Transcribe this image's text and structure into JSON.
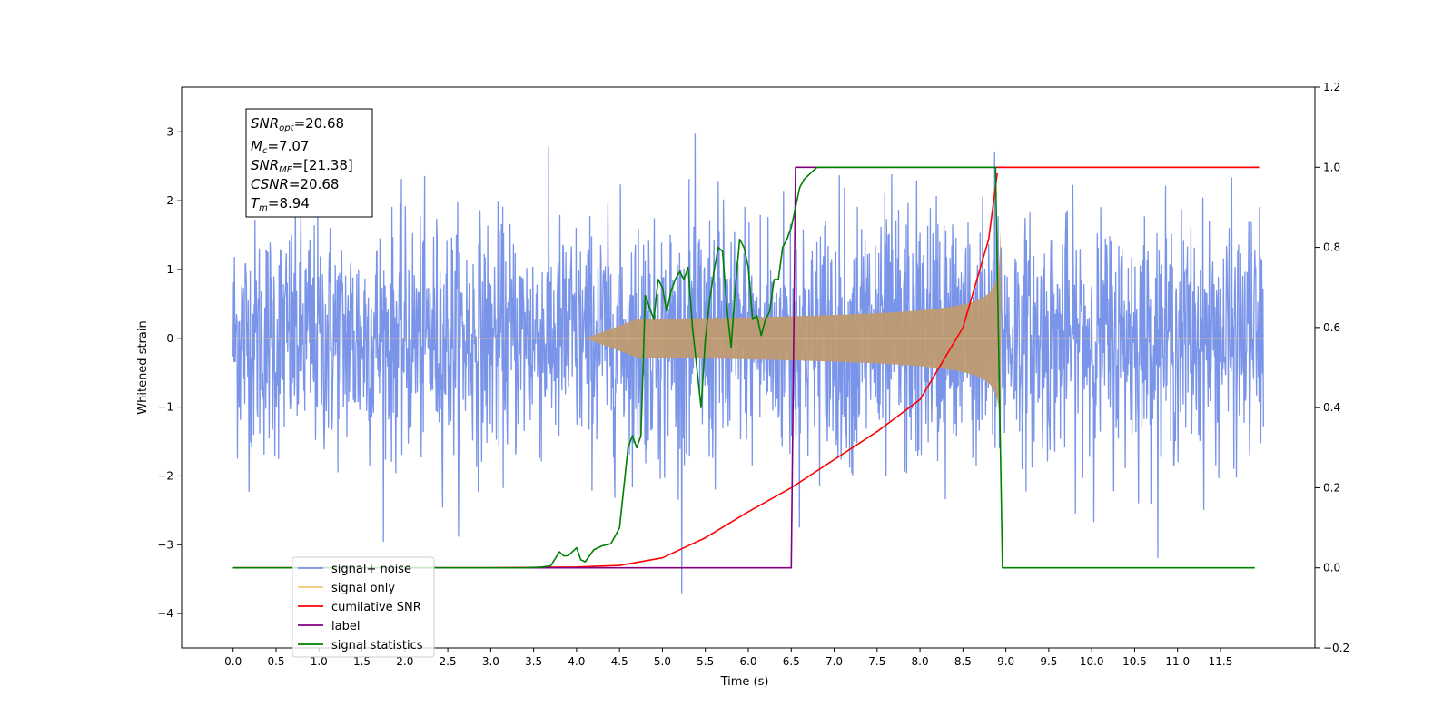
{
  "chart_data": {
    "type": "line",
    "xlabel": "Time (s)",
    "ylabel": "Whitened strain",
    "x_ticks": [
      "0.0",
      "0.5",
      "1.0",
      "1.5",
      "2.0",
      "2.5",
      "3.0",
      "3.5",
      "4.0",
      "4.5",
      "5.0",
      "5.5",
      "6.0",
      "6.5",
      "7.0",
      "7.5",
      "8.0",
      "8.5",
      "9.0",
      "9.5",
      "10.0",
      "10.5",
      "11.0",
      "11.5"
    ],
    "x_tick_values": [
      0,
      0.5,
      1,
      1.5,
      2,
      2.5,
      3,
      3.5,
      4,
      4.5,
      5,
      5.5,
      6,
      6.5,
      7,
      7.5,
      8,
      8.5,
      9,
      9.5,
      10,
      10.5,
      11,
      11.5
    ],
    "xlim": [
      -0.6,
      12.6
    ],
    "y_left_ticks": [
      "−4",
      "−3",
      "−2",
      "−1",
      "0",
      "1",
      "2",
      "3"
    ],
    "y_left_tick_values": [
      -4,
      -3,
      -2,
      -1,
      0,
      1,
      2,
      3
    ],
    "ylim_left": [
      -4.5,
      3.65
    ],
    "y_right_ticks": [
      "−0.2",
      "0.0",
      "0.2",
      "0.4",
      "0.6",
      "0.8",
      "1.0",
      "1.2"
    ],
    "y_right_tick_values": [
      -0.2,
      0,
      0.2,
      0.4,
      0.6,
      0.8,
      1.0,
      1.2
    ],
    "ylim_right": [
      -0.2,
      1.2
    ],
    "grid": false,
    "legend_position": "lower-left",
    "annotation": {
      "lines": [
        {
          "base": "SNR",
          "sub": "opt",
          "value": "=20.68"
        },
        {
          "base": "M",
          "sub": "c",
          "value": "=7.07"
        },
        {
          "base": "SNR",
          "sub": "MF",
          "value": "=[21.38]"
        },
        {
          "base": "CSNR",
          "sub": "",
          "value": "=20.68"
        },
        {
          "base": "T",
          "sub": "m",
          "value": "=8.94"
        }
      ]
    },
    "series": [
      {
        "name": "signal+ noise",
        "color": "#7994e8",
        "axis": "left",
        "description_x_range": [
          0,
          12
        ]
      },
      {
        "name": "signal only",
        "color": "#f5c77e",
        "axis": "left",
        "chirp_start": 4.7,
        "chirp_end": 8.94
      },
      {
        "name": "cumilative SNR",
        "color": "#ff0000",
        "axis": "right",
        "x": [
          0,
          3,
          4,
          4.5,
          5,
          5.5,
          6,
          6.5,
          7,
          7.5,
          8,
          8.5,
          8.8,
          8.9
        ],
        "y": [
          0,
          0,
          0.002,
          0.006,
          0.025,
          0.075,
          0.14,
          0.2,
          0.27,
          0.34,
          0.42,
          0.6,
          0.82,
          0.985
        ]
      },
      {
        "name": "label",
        "color": "#800080",
        "axis": "right",
        "x": [
          0,
          6.5,
          6.55,
          8.9,
          8.95,
          11.95
        ],
        "y": [
          0,
          0,
          1,
          1,
          1,
          1
        ]
      },
      {
        "name": "signal statistics",
        "color": "#008000",
        "axis": "right",
        "x": [
          0,
          3.4,
          3.5,
          3.6,
          3.7,
          3.8,
          3.85,
          3.9,
          3.95,
          4.0,
          4.05,
          4.1,
          4.15,
          4.2,
          4.3,
          4.4,
          4.5,
          4.55,
          4.6,
          4.65,
          4.7,
          4.75,
          4.8,
          4.85,
          4.9,
          4.95,
          5.0,
          5.05,
          5.1,
          5.15,
          5.2,
          5.25,
          5.3,
          5.35,
          5.4,
          5.45,
          5.5,
          5.55,
          5.6,
          5.65,
          5.7,
          5.75,
          5.8,
          5.85,
          5.9,
          5.95,
          6.0,
          6.05,
          6.1,
          6.15,
          6.2,
          6.25,
          6.3,
          6.35,
          6.4,
          6.45,
          6.5,
          6.55,
          6.6,
          6.65,
          6.7,
          6.75,
          6.8,
          6.85,
          6.9,
          6.95,
          7.0,
          7.05,
          7.1,
          7.15,
          7.2,
          7.25,
          7.3,
          7.5,
          8.0,
          8.5,
          8.88,
          8.92,
          8.96,
          9.0,
          11.9
        ],
        "y": [
          0,
          0,
          0.001,
          0.002,
          0.005,
          0.04,
          0.03,
          0.03,
          0.04,
          0.05,
          0.02,
          0.015,
          0.03,
          0.045,
          0.055,
          0.06,
          0.1,
          0.2,
          0.3,
          0.33,
          0.3,
          0.33,
          0.68,
          0.65,
          0.62,
          0.72,
          0.7,
          0.64,
          0.69,
          0.72,
          0.74,
          0.72,
          0.75,
          0.6,
          0.5,
          0.4,
          0.57,
          0.67,
          0.74,
          0.8,
          0.79,
          0.65,
          0.55,
          0.7,
          0.82,
          0.8,
          0.75,
          0.62,
          0.63,
          0.58,
          0.62,
          0.64,
          0.72,
          0.72,
          0.8,
          0.82,
          0.85,
          0.9,
          0.95,
          0.97,
          0.98,
          0.99,
          1.0,
          1.0,
          1.0,
          1.0,
          1.0,
          1.0,
          1.0,
          1.0,
          1.0,
          1.0,
          1.0,
          1.0,
          1.0,
          1.0,
          1.0,
          0.5,
          0.0,
          0.0,
          0.0
        ]
      }
    ]
  }
}
